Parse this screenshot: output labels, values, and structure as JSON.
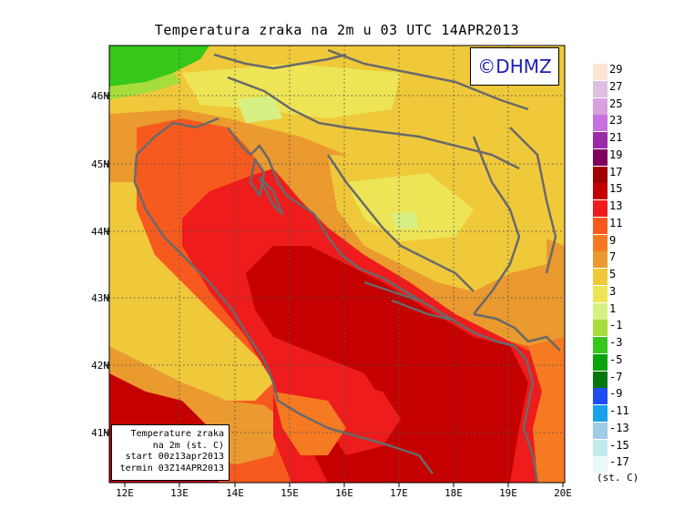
{
  "title": "Temperatura zraka na 2m u 03 UTC 14APR2013",
  "logo": "©DHMZ",
  "info_box": {
    "line1": "Temperature zraka",
    "line2": "na 2m (st. C)",
    "line3": "start 00z13apr2013",
    "line4": "termin 03Z14APR2013"
  },
  "axes": {
    "lat_labels": [
      "46N",
      "45N",
      "44N",
      "43N",
      "42N",
      "41N"
    ],
    "lon_labels": [
      "12E",
      "13E",
      "14E",
      "15E",
      "16E",
      "17E",
      "18E",
      "19E",
      "20E"
    ]
  },
  "legend": {
    "units": "(st. C)",
    "labels": [
      "29",
      "27",
      "25",
      "23",
      "21",
      "19",
      "17",
      "15",
      "13",
      "11",
      "9",
      "7",
      "5",
      "3",
      "1",
      "-1",
      "-3",
      "-5",
      "-7",
      "-9",
      "-11",
      "-13",
      "-15",
      "-17"
    ],
    "colors": [
      "#fbe6d6",
      "#ddbfdf",
      "#d9a1df",
      "#c671dd",
      "#9b2aa8",
      "#800060",
      "#a00000",
      "#c40000",
      "#ee1c1c",
      "#f75a1e",
      "#f57a22",
      "#ea9a2e",
      "#f0c93a",
      "#ede556",
      "#d7f083",
      "#a6dc3c",
      "#35c71a",
      "#08a40a",
      "#06760f",
      "#1e4cf2",
      "#1aa0e8",
      "#9ecbe7",
      "#c2e9ec",
      "#e8fbf8"
    ]
  },
  "colors": {
    "deep_red": "#c40000",
    "red": "#ee1c1c",
    "orange_red": "#f75a1e",
    "orange": "#f57a22",
    "light_orange": "#ea9a2e",
    "yellow": "#f0c93a",
    "light_yellow": "#ede556",
    "pale_green": "#d7f083",
    "green": "#35c71a",
    "coast": "#6a6a6a"
  }
}
